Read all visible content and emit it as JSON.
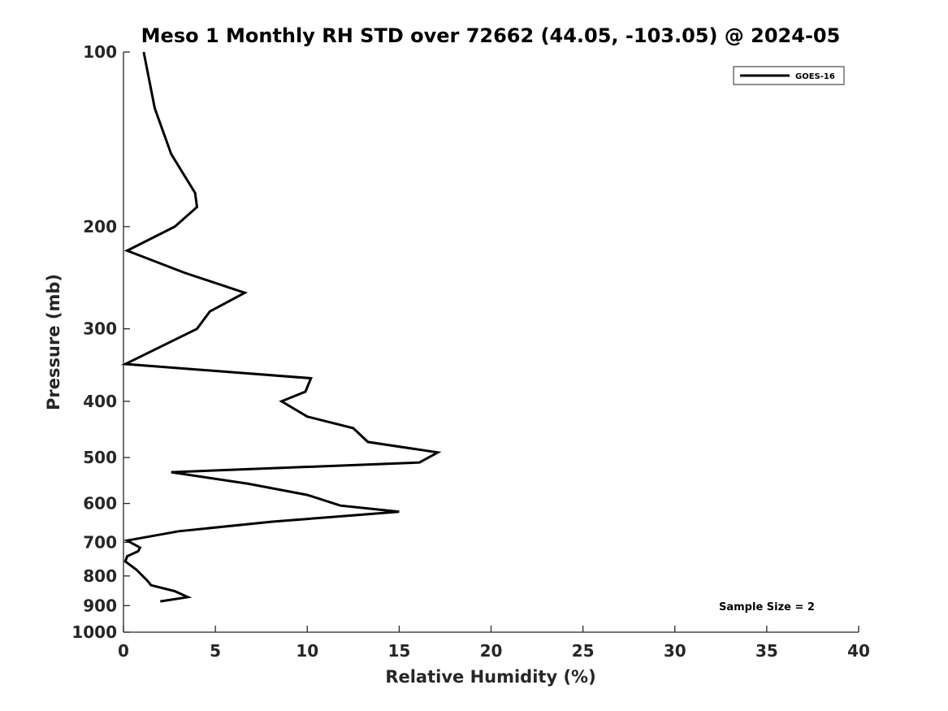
{
  "chart_data": {
    "type": "line",
    "title": "Meso 1 Monthly RH STD over 72662 (44.05, -103.05) @ 2024-05",
    "xlabel": "Relative Humidity (%)",
    "ylabel": "Pressure (mb)",
    "xlim": [
      0,
      40
    ],
    "ylim": [
      100,
      1000
    ],
    "y_scale": "log",
    "y_reversed": true,
    "xticks": [
      0,
      5,
      10,
      15,
      20,
      25,
      30,
      35,
      40
    ],
    "yticks": [
      100,
      200,
      300,
      400,
      500,
      600,
      700,
      800,
      900,
      1000
    ],
    "grid": false,
    "legend_position": "top-right",
    "series": [
      {
        "name": "GOES-16",
        "color": "#000000",
        "x": [
          1.1,
          1.7,
          2.6,
          3.9,
          4.0,
          2.8,
          0.2,
          3.3,
          6.6,
          4.7,
          4.0,
          2.2,
          0.1,
          10.2,
          9.9,
          8.6,
          10.0,
          12.5,
          13.3,
          17.1,
          16.1,
          2.6,
          6.8,
          10.0,
          11.8,
          15.0,
          8.1,
          3.0,
          0.2,
          0.9,
          0.8,
          0.2,
          0.1,
          0.7,
          1.3,
          1.5,
          2.8,
          3.5,
          2.0
        ],
        "y": [
          100,
          125,
          150,
          175,
          185,
          200,
          220,
          240,
          260,
          280,
          300,
          320,
          345,
          365,
          385,
          400,
          425,
          445,
          470,
          490,
          510,
          530,
          555,
          580,
          605,
          620,
          645,
          670,
          695,
          715,
          725,
          740,
          755,
          780,
          815,
          830,
          850,
          870,
          885
        ]
      }
    ],
    "annotations": [
      "Sample Size = 2"
    ]
  }
}
